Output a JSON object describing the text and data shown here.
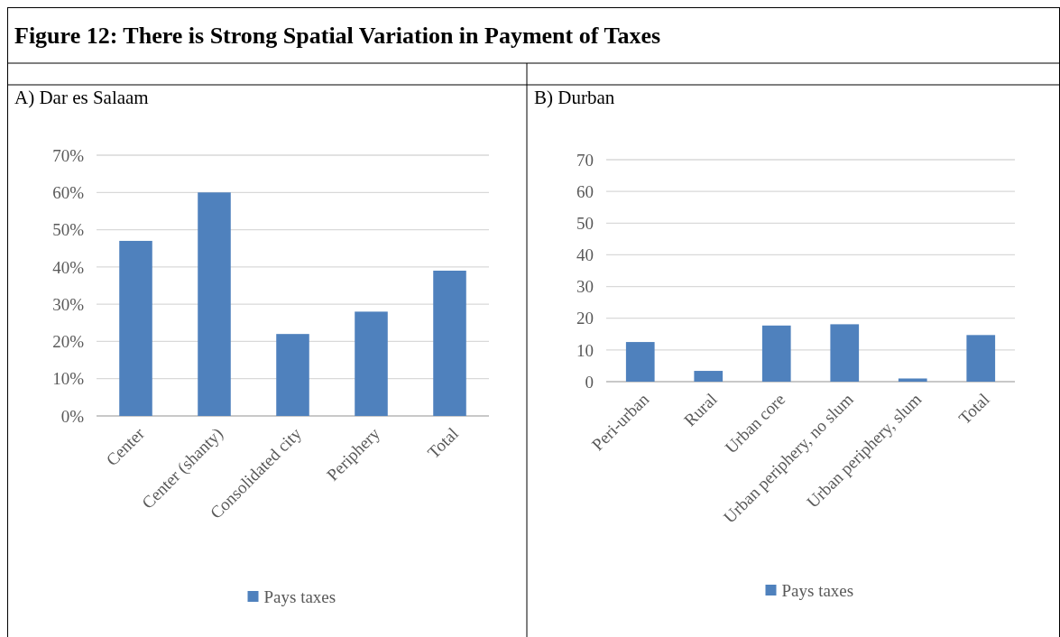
{
  "chart_data": [
    {
      "type": "bar",
      "title": "A) Dar es Salaam",
      "annotations": [
        "Figure 12: There is Strong Spatial Variation in Payment of Taxes"
      ],
      "categories": [
        "Center",
        "Center (shanty)",
        "Consolidated city",
        "Periphery",
        "Total"
      ],
      "series": [
        {
          "name": "Pays taxes",
          "color": "#4f81bd",
          "values": [
            47,
            60,
            22,
            28,
            39
          ]
        }
      ],
      "ylim": [
        0,
        70
      ],
      "yticks": [
        {
          "value": 0,
          "label": "0%"
        },
        {
          "value": 10,
          "label": "10%"
        },
        {
          "value": 20,
          "label": "20%"
        },
        {
          "value": 30,
          "label": "30%"
        },
        {
          "value": 40,
          "label": "40%"
        },
        {
          "value": 50,
          "label": "50%"
        },
        {
          "value": 60,
          "label": "60%"
        },
        {
          "value": 70,
          "label": "70%"
        }
      ],
      "grid": "y",
      "legend": "bottom"
    },
    {
      "type": "bar",
      "title": "B) Durban",
      "categories": [
        "Peri-urban",
        "Rural",
        "Urban core",
        "Urban periphery, no slum",
        "Urban periphery, slum",
        "Total"
      ],
      "series": [
        {
          "name": "Pays taxes",
          "color": "#4f81bd",
          "values": [
            12.5,
            3.4,
            17.7,
            18.1,
            1.0,
            14.7
          ]
        }
      ],
      "ylim": [
        0,
        70
      ],
      "yticks": [
        0,
        10,
        20,
        30,
        40,
        50,
        60,
        70
      ],
      "grid": "y",
      "legend": "bottom"
    }
  ]
}
